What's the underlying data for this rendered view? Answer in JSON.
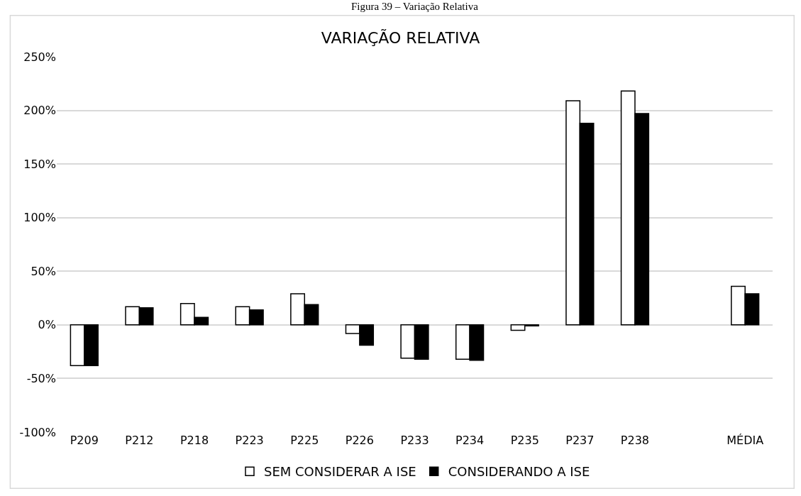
{
  "chart_data": {
    "type": "bar",
    "title": "VARIAÇÃO RELATIVA",
    "annotations": [
      "Figura 39 – Variação Relativa"
    ],
    "categories": [
      "P209",
      "P212",
      "P218",
      "P223",
      "P225",
      "P226",
      "P233",
      "P234",
      "P235",
      "P237",
      "P238",
      null,
      "MÉDIA"
    ],
    "series": [
      {
        "name": "SEM CONSIDERAR A ISE",
        "color": "#ffffff",
        "values": [
          -38,
          17,
          20,
          17,
          29,
          -8,
          -31,
          -32,
          -5,
          209,
          218,
          null,
          36
        ]
      },
      {
        "name": "CONSIDERANDO A ISE",
        "color": "#000000",
        "values": [
          -38,
          16,
          7,
          14,
          19,
          -19,
          -32,
          -33,
          -1,
          188,
          197,
          null,
          29
        ]
      }
    ],
    "ylim": [
      -100,
      250
    ],
    "yticks": [
      {
        "value": -100,
        "label": "-100%"
      },
      {
        "value": -50,
        "label": "-50%"
      },
      {
        "value": 0,
        "label": "0%"
      },
      {
        "value": 50,
        "label": "50%"
      },
      {
        "value": 100,
        "label": "100%"
      },
      {
        "value": 150,
        "label": "150%"
      },
      {
        "value": 200,
        "label": "200%"
      },
      {
        "value": 250,
        "label": "250%"
      }
    ],
    "grid": "y",
    "legend": "bottom"
  }
}
